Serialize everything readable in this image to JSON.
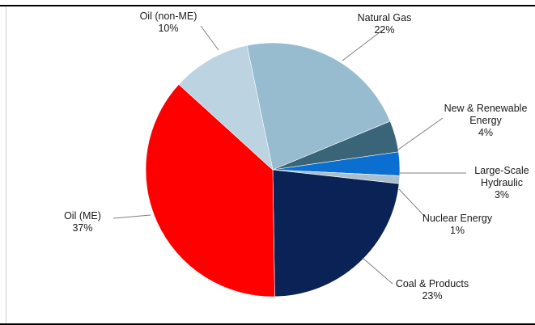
{
  "chart_data": {
    "type": "pie",
    "title": "",
    "slices": [
      {
        "name": "Natural Gas",
        "value": 22,
        "pct_label": "22%",
        "color": "#97bccf",
        "lines": [
          "Natural Gas"
        ]
      },
      {
        "name": "New & Renewable Energy",
        "value": 4,
        "pct_label": "4%",
        "color": "#3a6478",
        "lines": [
          "New & Renewable",
          "Energy"
        ]
      },
      {
        "name": "Large-Scale Hydraulic",
        "value": 3,
        "pct_label": "3%",
        "color": "#0a6fd0",
        "lines": [
          "Large-Scale",
          "Hydraulic"
        ]
      },
      {
        "name": "Nuclear Energy",
        "value": 1,
        "pct_label": "1%",
        "color": "#a9bfd0",
        "lines": [
          "Nuclear Energy"
        ]
      },
      {
        "name": "Coal & Products",
        "value": 23,
        "pct_label": "23%",
        "color": "#0b2256",
        "lines": [
          "Coal & Products"
        ]
      },
      {
        "name": "Oil (ME)",
        "value": 37,
        "pct_label": "37%",
        "color": "#ff0000",
        "lines": [
          "Oil (ME)"
        ]
      },
      {
        "name": "Oil (non-ME)",
        "value": 10,
        "pct_label": "10%",
        "color": "#bcd3e1",
        "lines": [
          "Oil (non-ME)"
        ]
      }
    ],
    "legend": "none",
    "data_labels": "outside with leader lines"
  }
}
